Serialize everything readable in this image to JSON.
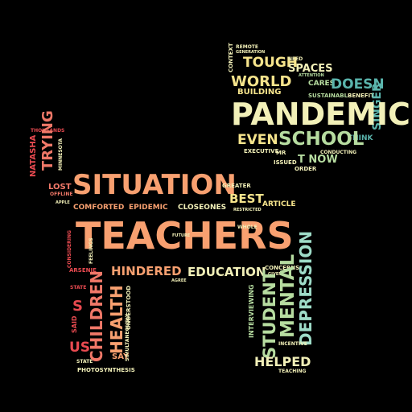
{
  "palette": {
    "orange": "#f8a070",
    "red": "#e84a50",
    "salmon": "#f07868",
    "yellow": "#f6e48c",
    "cream": "#f2f0b8",
    "green": "#b6dca0",
    "teal": "#5ab4ac",
    "aqua": "#9edcc8"
  },
  "words": {
    "teachers": "TEACHERS",
    "situation": "SITUATION",
    "pandemic": "PANDEMIC",
    "school": "SCHOOL",
    "even": "EVEN",
    "world": "WORLD",
    "tough": "TOUGH",
    "spaces": "SPACES",
    "building": "BUILDING",
    "doesn": "DOESN",
    "cares": "CARES",
    "sustainable": "SUSTAINABLE",
    "benefit": "BENEFIT",
    "singer": "SINGER",
    "think": "THINK",
    "context": "CONTEXT",
    "remote": "REMOTE",
    "generation": "GENERATION",
    "need": "NEED",
    "attention": "ATTENTION",
    "executive": "EXECUTIVE",
    "mr": "MR",
    "issued": "ISSUED",
    "t_now": "T NOW",
    "order": "ORDER",
    "conducting": "CONDUCTING",
    "thousands": "THOUSANDS",
    "natasha": "NATASHA",
    "trying": "TRYING",
    "minnesota": "MINNESOTA",
    "lost": "LOST",
    "offline": "OFFLINE",
    "apple": "APPLE",
    "greater": "GREATER",
    "best": "BEST",
    "article": "ARTICLE",
    "restricted": "RESTRICTED",
    "comforted": "COMFORTED",
    "epidemic": "EPIDEMIC",
    "closeones": "CLOSEONES",
    "whole": "WHOLE",
    "considering": "CONSIDERING",
    "feelings": "FEELINGS",
    "future": "FUTURE",
    "arsenie": "ARSENIE",
    "hindered": "HINDERED",
    "agree": "AGREE",
    "education": "EDUCATION",
    "concerns": "CONCERNS",
    "given": "GIVEN",
    "state": "STATE",
    "s": "S",
    "said": "SAID",
    "us": "US",
    "state2": "STATE",
    "photosynthesis": "PHOTOSYNTHESIS",
    "children": "CHILDREN",
    "health": "HEALTH",
    "say": "SAY",
    "simultaneously": "SIMULTANEOUSLY",
    "understood": "UNDERSTOOD",
    "interviewing": "INTERVIEWING",
    "student": "STUDENT",
    "mental": "MENTAL",
    "depression": "DEPRESSION",
    "incentive": "INCENTIVE",
    "helped": "HELPED",
    "teaching": "TEACHING"
  }
}
